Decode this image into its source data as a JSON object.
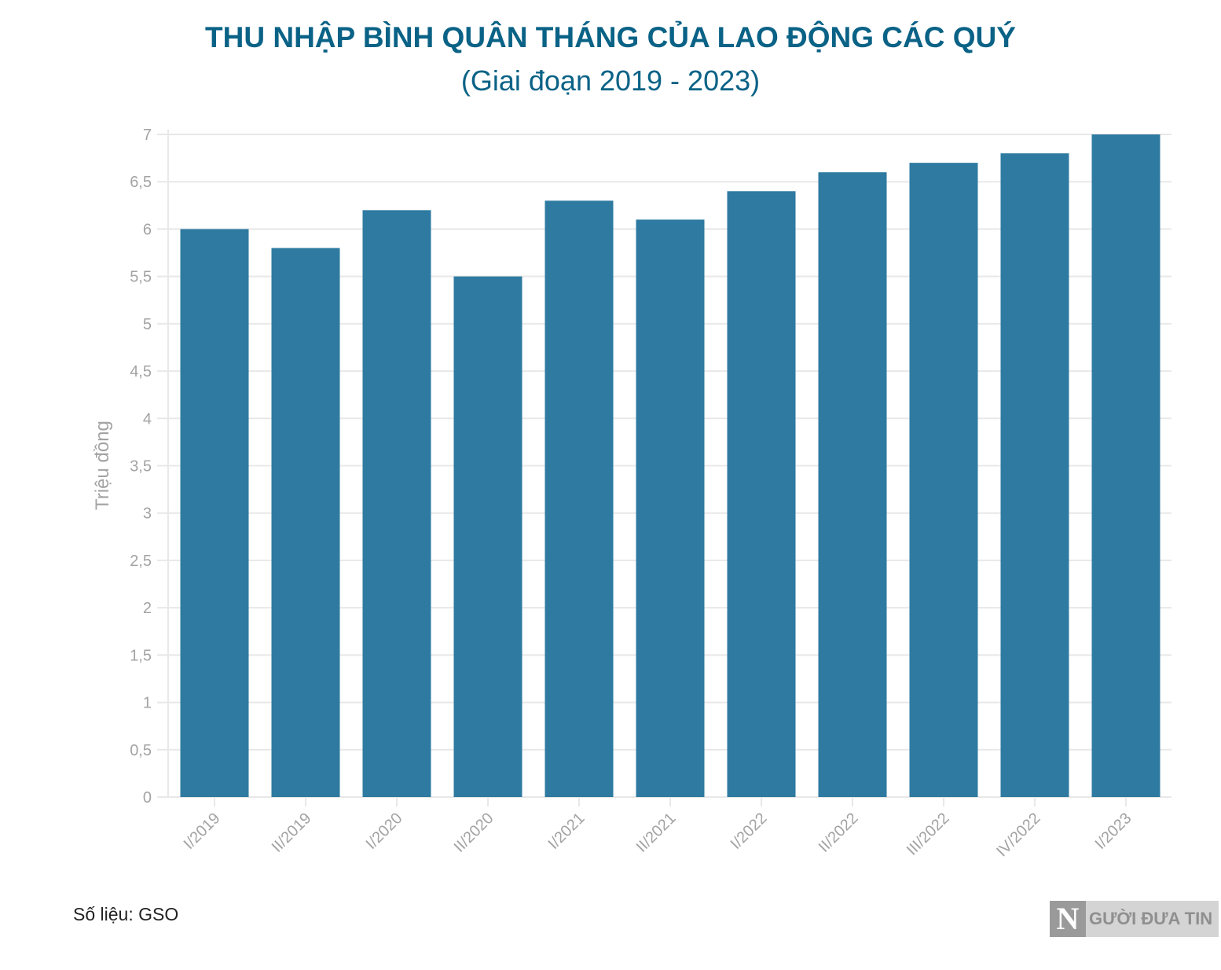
{
  "colors": {
    "title": "#0a6286",
    "bar": "#2e7aa1",
    "grid": "#e8e8e8",
    "axis_text": "#a3a3a3"
  },
  "chart_data": {
    "type": "bar",
    "title": "THU NHẬP BÌNH QUÂN THÁNG CỦA LAO ĐỘNG CÁC QUÝ",
    "subtitle": "(Giai đoạn 2019 - 2023)",
    "xlabel": "",
    "ylabel": "Triệu đồng",
    "categories": [
      "I/2019",
      "II/2019",
      "I/2020",
      "II/2020",
      "I/2021",
      "II/2021",
      "I/2022",
      "II/2022",
      "III/2022",
      "IV/2022",
      "I/2023"
    ],
    "values": [
      6,
      5.8,
      6.2,
      5.5,
      6.3,
      6.1,
      6.4,
      6.6,
      6.7,
      6.8,
      7
    ],
    "ylim": [
      0,
      7
    ],
    "yticks": [
      0,
      0.5,
      1,
      1.5,
      2,
      2.5,
      3,
      3.5,
      4,
      4.5,
      5,
      5.5,
      6,
      6.5,
      7
    ],
    "ytick_labels": [
      "0",
      "0,5",
      "1",
      "1,5",
      "2",
      "2,5",
      "3",
      "3,5",
      "4",
      "4,5",
      "5",
      "5,5",
      "6",
      "6,5",
      "7"
    ],
    "grid": true,
    "legend": "none"
  },
  "footer": {
    "source": "Số liệu: GSO",
    "logo_letter": "N",
    "logo_text": "GƯỜI ĐƯA TIN"
  }
}
